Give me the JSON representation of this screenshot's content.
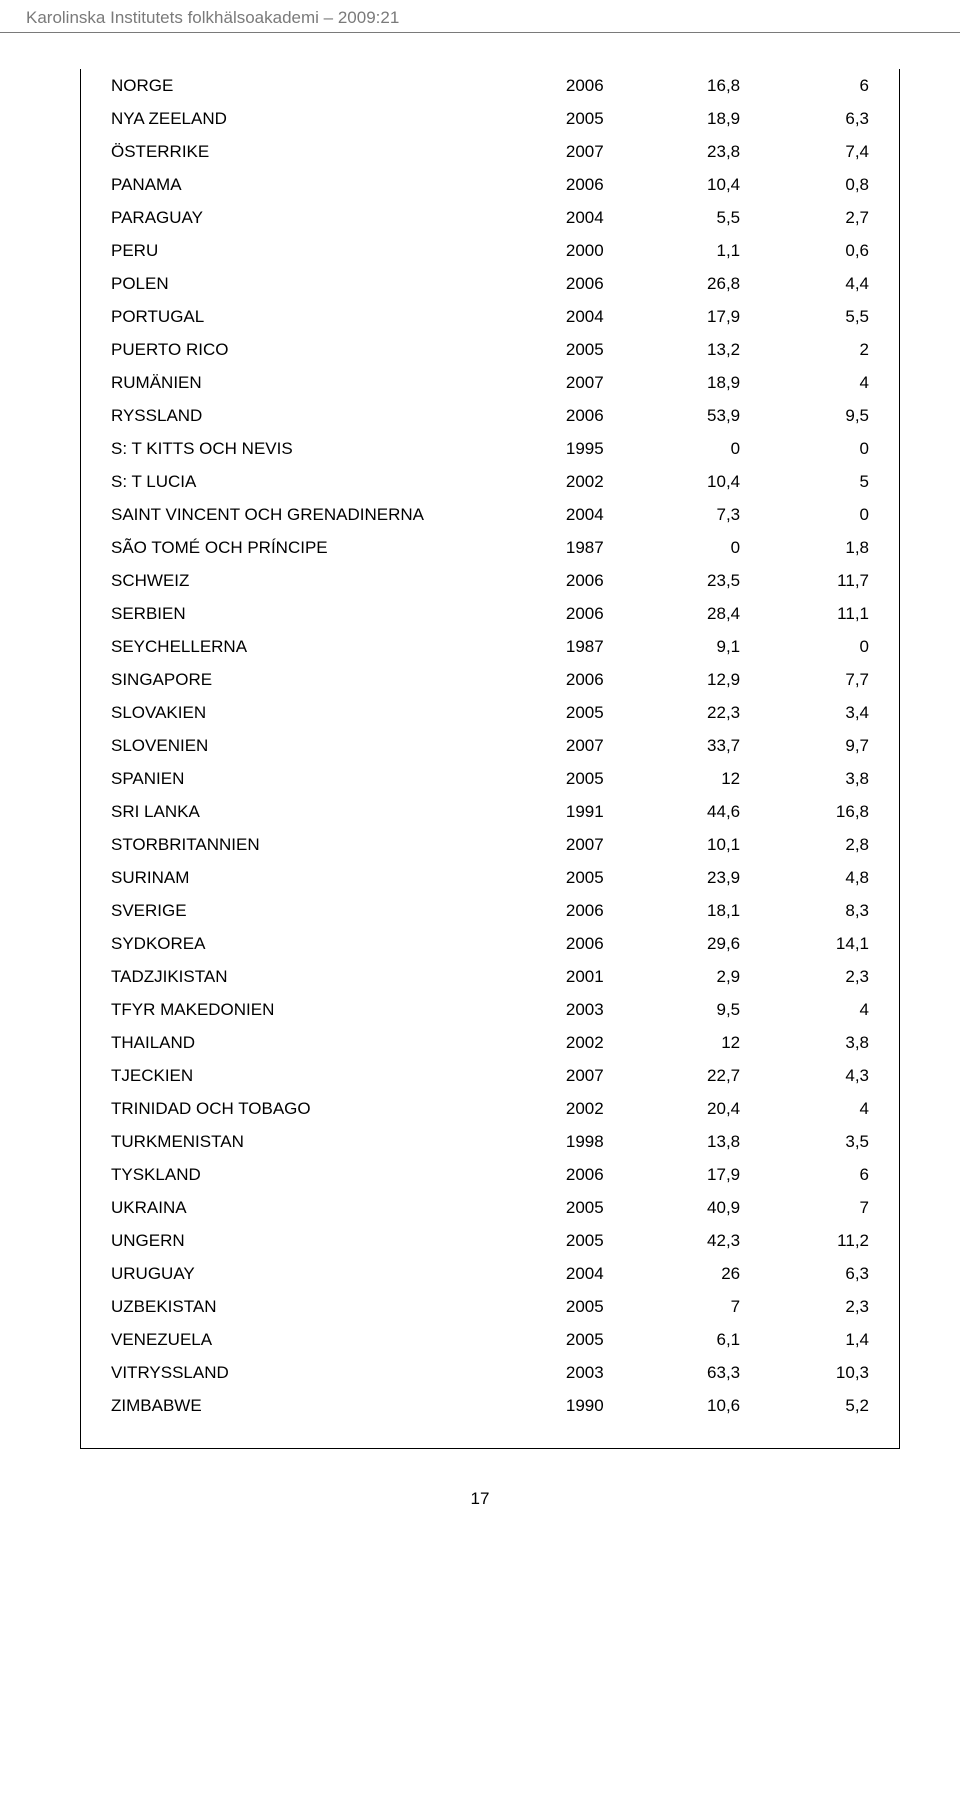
{
  "header": "Karolinska Institutets folkhälsoakademi – 2009:21",
  "page_number": "17",
  "table": {
    "columns": [
      "country",
      "year",
      "value1",
      "value2"
    ],
    "col_align": [
      "left",
      "right",
      "right",
      "right"
    ],
    "font_size_pt": 13,
    "rows": [
      [
        "NORGE",
        "2006",
        "16,8",
        "6"
      ],
      [
        "NYA ZEELAND",
        "2005",
        "18,9",
        "6,3"
      ],
      [
        "ÖSTERRIKE",
        "2007",
        "23,8",
        "7,4"
      ],
      [
        "PANAMA",
        "2006",
        "10,4",
        "0,8"
      ],
      [
        "PARAGUAY",
        "2004",
        "5,5",
        "2,7"
      ],
      [
        "PERU",
        "2000",
        "1,1",
        "0,6"
      ],
      [
        "POLEN",
        "2006",
        "26,8",
        "4,4"
      ],
      [
        "PORTUGAL",
        "2004",
        "17,9",
        "5,5"
      ],
      [
        "PUERTO RICO",
        "2005",
        "13,2",
        "2"
      ],
      [
        "RUMÄNIEN",
        "2007",
        "18,9",
        "4"
      ],
      [
        "RYSSLAND",
        "2006",
        "53,9",
        "9,5"
      ],
      [
        "S: T KITTS OCH NEVIS",
        "1995",
        "0",
        "0"
      ],
      [
        "S: T LUCIA",
        "2002",
        "10,4",
        "5"
      ],
      [
        "SAINT VINCENT OCH GRENADINERNA",
        "2004",
        "7,3",
        "0"
      ],
      [
        "SÃO TOMÉ OCH PRÍNCIPE",
        "1987",
        "0",
        "1,8"
      ],
      [
        "SCHWEIZ",
        "2006",
        "23,5",
        "11,7"
      ],
      [
        "SERBIEN",
        "2006",
        "28,4",
        "11,1"
      ],
      [
        "SEYCHELLERNA",
        "1987",
        "9,1",
        "0"
      ],
      [
        "SINGAPORE",
        "2006",
        "12,9",
        "7,7"
      ],
      [
        "SLOVAKIEN",
        "2005",
        "22,3",
        "3,4"
      ],
      [
        "SLOVENIEN",
        "2007",
        "33,7",
        "9,7"
      ],
      [
        "SPANIEN",
        "2005",
        "12",
        "3,8"
      ],
      [
        "SRI LANKA",
        "1991",
        "44,6",
        "16,8"
      ],
      [
        "STORBRITANNIEN",
        "2007",
        "10,1",
        "2,8"
      ],
      [
        "SURINAM",
        "2005",
        "23,9",
        "4,8"
      ],
      [
        "SVERIGE",
        "2006",
        "18,1",
        "8,3"
      ],
      [
        "SYDKOREA",
        "2006",
        "29,6",
        "14,1"
      ],
      [
        "TADZJIKISTAN",
        "2001",
        "2,9",
        "2,3"
      ],
      [
        "TFYR MAKEDONIEN",
        "2003",
        "9,5",
        "4"
      ],
      [
        "THAILAND",
        "2002",
        "12",
        "3,8"
      ],
      [
        "TJECKIEN",
        "2007",
        "22,7",
        "4,3"
      ],
      [
        "TRINIDAD OCH TOBAGO",
        "2002",
        "20,4",
        "4"
      ],
      [
        "TURKMENISTAN",
        "1998",
        "13,8",
        "3,5"
      ],
      [
        "TYSKLAND",
        "2006",
        "17,9",
        "6"
      ],
      [
        "UKRAINA",
        "2005",
        "40,9",
        "7"
      ],
      [
        "UNGERN",
        "2005",
        "42,3",
        "11,2"
      ],
      [
        "URUGUAY",
        "2004",
        "26",
        "6,3"
      ],
      [
        "UZBEKISTAN",
        "2005",
        "7",
        "2,3"
      ],
      [
        "VENEZUELA",
        "2005",
        "6,1",
        "1,4"
      ],
      [
        "VITRYSSLAND",
        "2003",
        "63,3",
        "10,3"
      ],
      [
        "ZIMBABWE",
        "1990",
        "10,6",
        "5,2"
      ]
    ]
  },
  "colors": {
    "header_text": "#7a7a7a",
    "body_text": "#000000",
    "border": "#000000",
    "background": "#ffffff"
  }
}
